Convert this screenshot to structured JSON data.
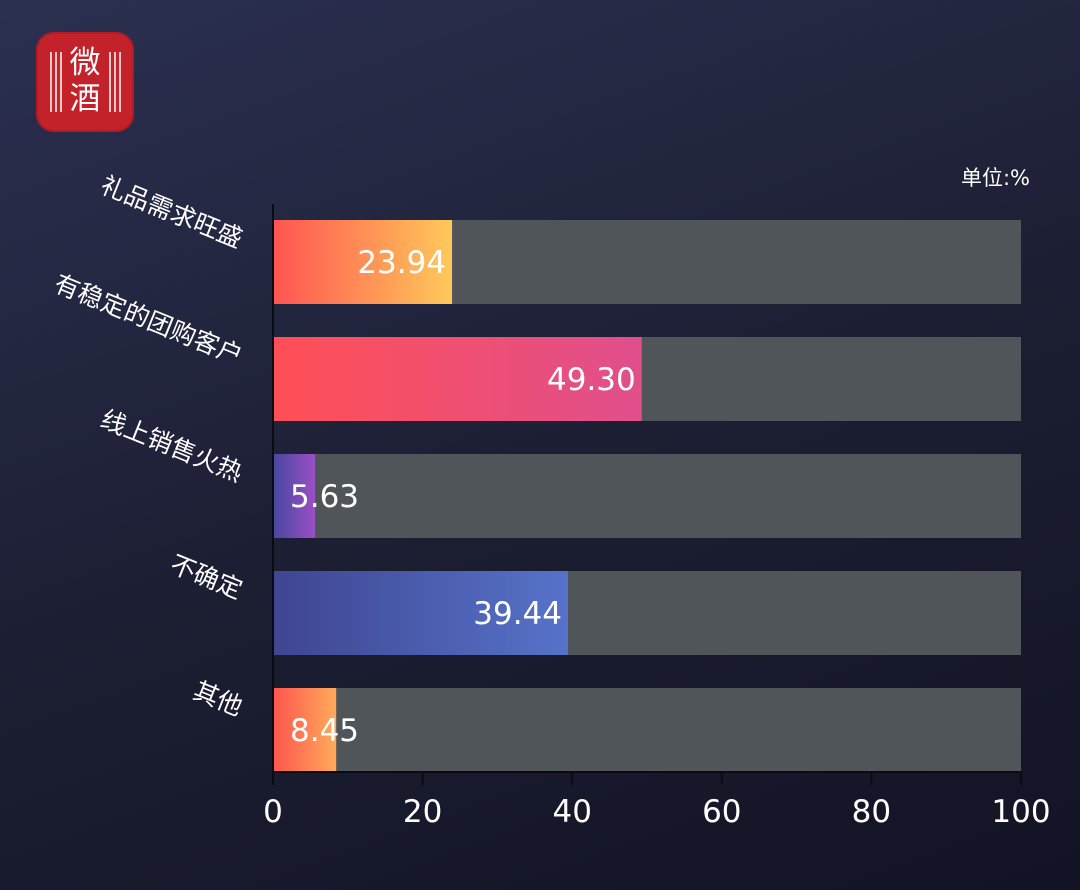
{
  "logo": {
    "text": "微酒",
    "color": "#c3222a"
  },
  "unit_label": "单位:%",
  "chart_data": {
    "type": "bar",
    "orientation": "horizontal",
    "categories": [
      "礼品需求旺盛",
      "有稳定的团购客户",
      "线上销售火热",
      "不确定",
      "其他"
    ],
    "values": [
      23.94,
      49.3,
      5.63,
      39.44,
      8.45
    ],
    "value_labels": [
      "23.94",
      "49.30",
      "5.63",
      "39.44",
      "8.45"
    ],
    "xlim": [
      0,
      100
    ],
    "xticks": [
      0,
      20,
      40,
      60,
      80,
      100
    ],
    "track_max": 100,
    "track_color": "#50555a",
    "bar_gradients": [
      [
        "#ff5451",
        "#ffc95a"
      ],
      [
        "#ff4f56",
        "#e04f8c"
      ],
      [
        "#4547a0",
        "#9b4fc4"
      ],
      [
        "#3f4591",
        "#5673c9"
      ],
      [
        "#ff554d",
        "#ffaa5a"
      ]
    ],
    "grid": false,
    "legend": "none"
  }
}
